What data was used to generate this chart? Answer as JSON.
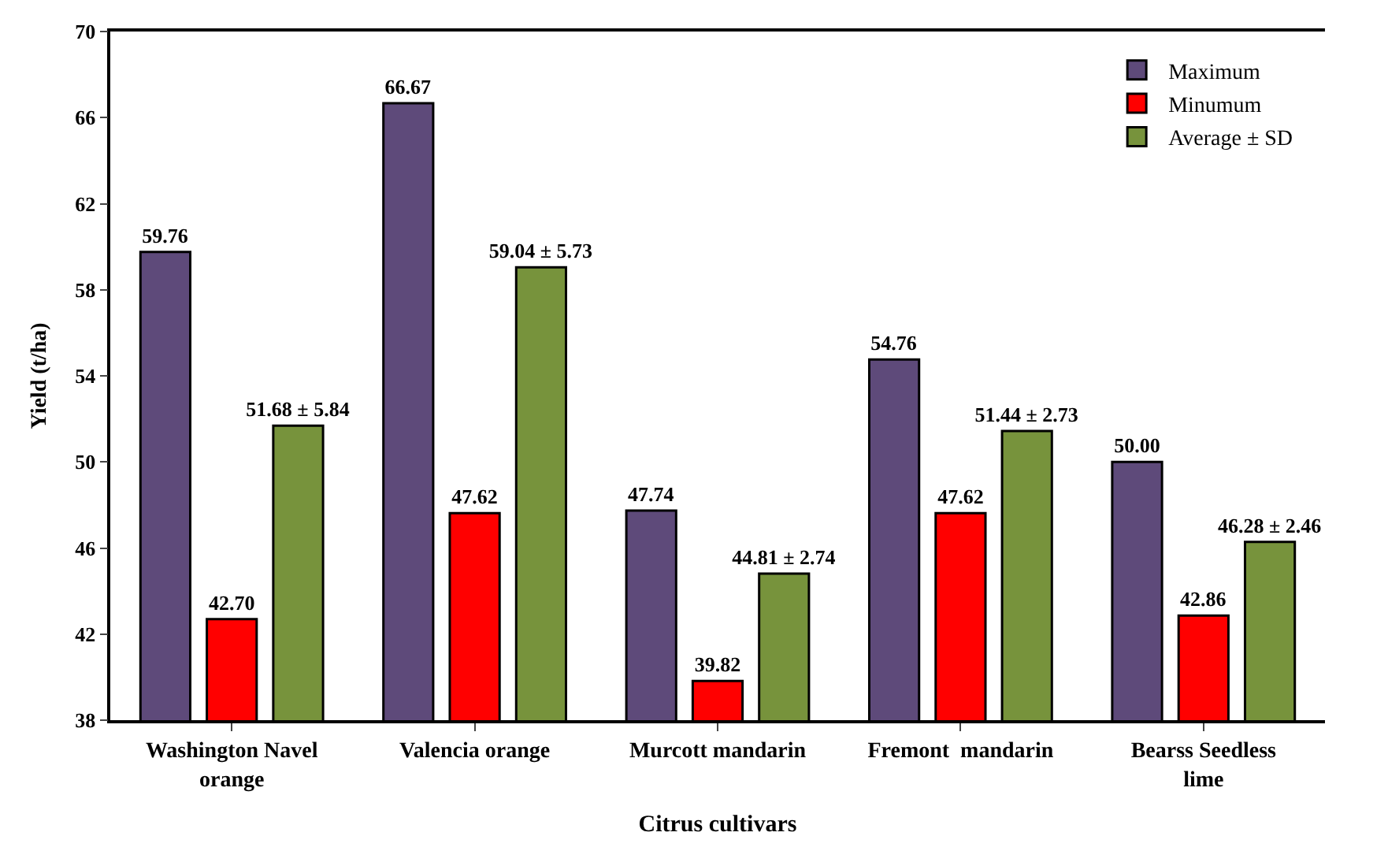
{
  "chart_data": {
    "type": "bar",
    "xlabel": "Citrus cultivars",
    "ylabel": "Yield (t/ha)",
    "categories": [
      "Washington Navel orange",
      "Valencia orange",
      "Murcott mandarin",
      "Fremont  mandarin",
      "Bearss Seedless lime"
    ],
    "series": [
      {
        "name": "Maximum",
        "color": "#5e4a7a",
        "values": [
          59.76,
          66.67,
          47.74,
          54.76,
          50.0
        ],
        "value_labels": [
          "59.76",
          "66.67",
          "47.74",
          "54.76",
          "50.00"
        ]
      },
      {
        "name": "Minumum",
        "color": "#ff0000",
        "values": [
          42.7,
          47.62,
          39.82,
          47.62,
          42.86
        ],
        "value_labels": [
          "42.70",
          "47.62",
          "39.82",
          "47.62",
          "42.86"
        ]
      },
      {
        "name": "Average ± SD",
        "color": "#77933c",
        "values": [
          51.68,
          59.04,
          44.81,
          51.44,
          46.28
        ],
        "value_labels": [
          "51.68 ± 5.84",
          "59.04 ± 5.73",
          "44.81 ± 2.74",
          "51.44 ± 2.73",
          "46.28 ± 2.46"
        ]
      }
    ],
    "ylim": [
      38,
      70
    ],
    "yticks": [
      38,
      42,
      46,
      50,
      54,
      58,
      62,
      66,
      70
    ],
    "legend": "top right"
  }
}
